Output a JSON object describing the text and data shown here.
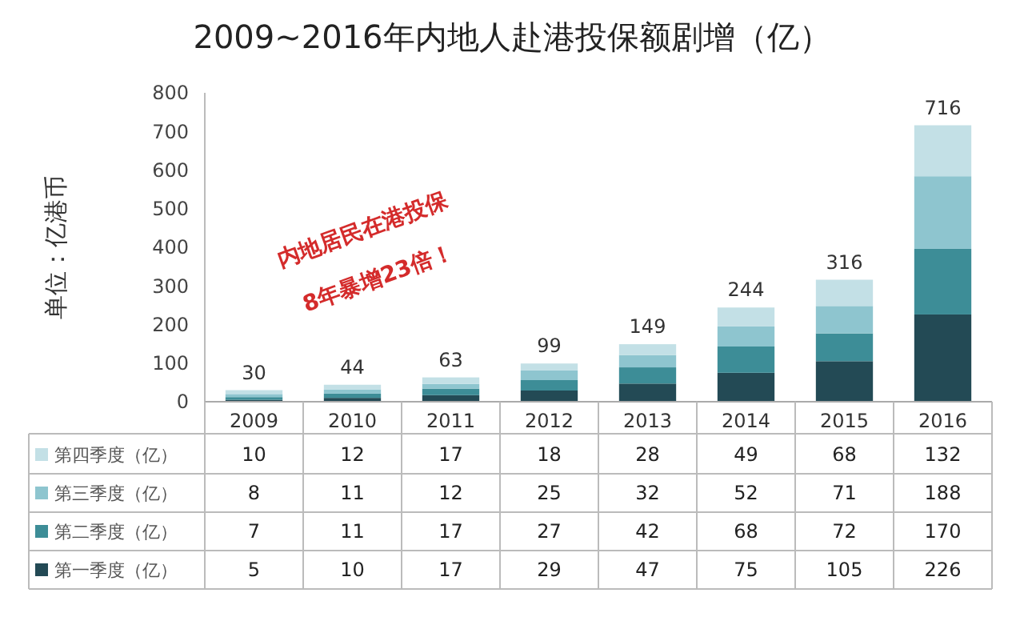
{
  "chart_data": {
    "type": "bar",
    "stacked": true,
    "title": "2009~2016年内地人赴港投保额剧增（亿）",
    "ylabel": "单位：亿港币",
    "categories": [
      "2009",
      "2010",
      "2011",
      "2012",
      "2013",
      "2014",
      "2015",
      "2016"
    ],
    "series": [
      {
        "name": "第一季度（亿）",
        "color": "#234a55",
        "values": [
          5,
          10,
          17,
          29,
          47,
          75,
          105,
          226
        ]
      },
      {
        "name": "第二季度（亿）",
        "color": "#3d8d97",
        "values": [
          7,
          11,
          17,
          27,
          42,
          68,
          72,
          170
        ]
      },
      {
        "name": "第三季度（亿）",
        "color": "#8ec5cf",
        "values": [
          8,
          11,
          12,
          25,
          32,
          52,
          71,
          188
        ]
      },
      {
        "name": "第四季度（亿）",
        "color": "#c3e0e6",
        "values": [
          10,
          12,
          17,
          18,
          28,
          49,
          68,
          132
        ]
      }
    ],
    "totals": [
      "30",
      "44",
      "63",
      "99",
      "149",
      "244",
      "316",
      "716"
    ],
    "ylim": [
      0,
      800
    ],
    "yticks": [
      0,
      100,
      200,
      300,
      400,
      500,
      600,
      700,
      800
    ],
    "data_labels": true,
    "legend": "bottom",
    "annotations": [
      "内地居民在港投保",
      "8年暴增23倍！"
    ]
  }
}
